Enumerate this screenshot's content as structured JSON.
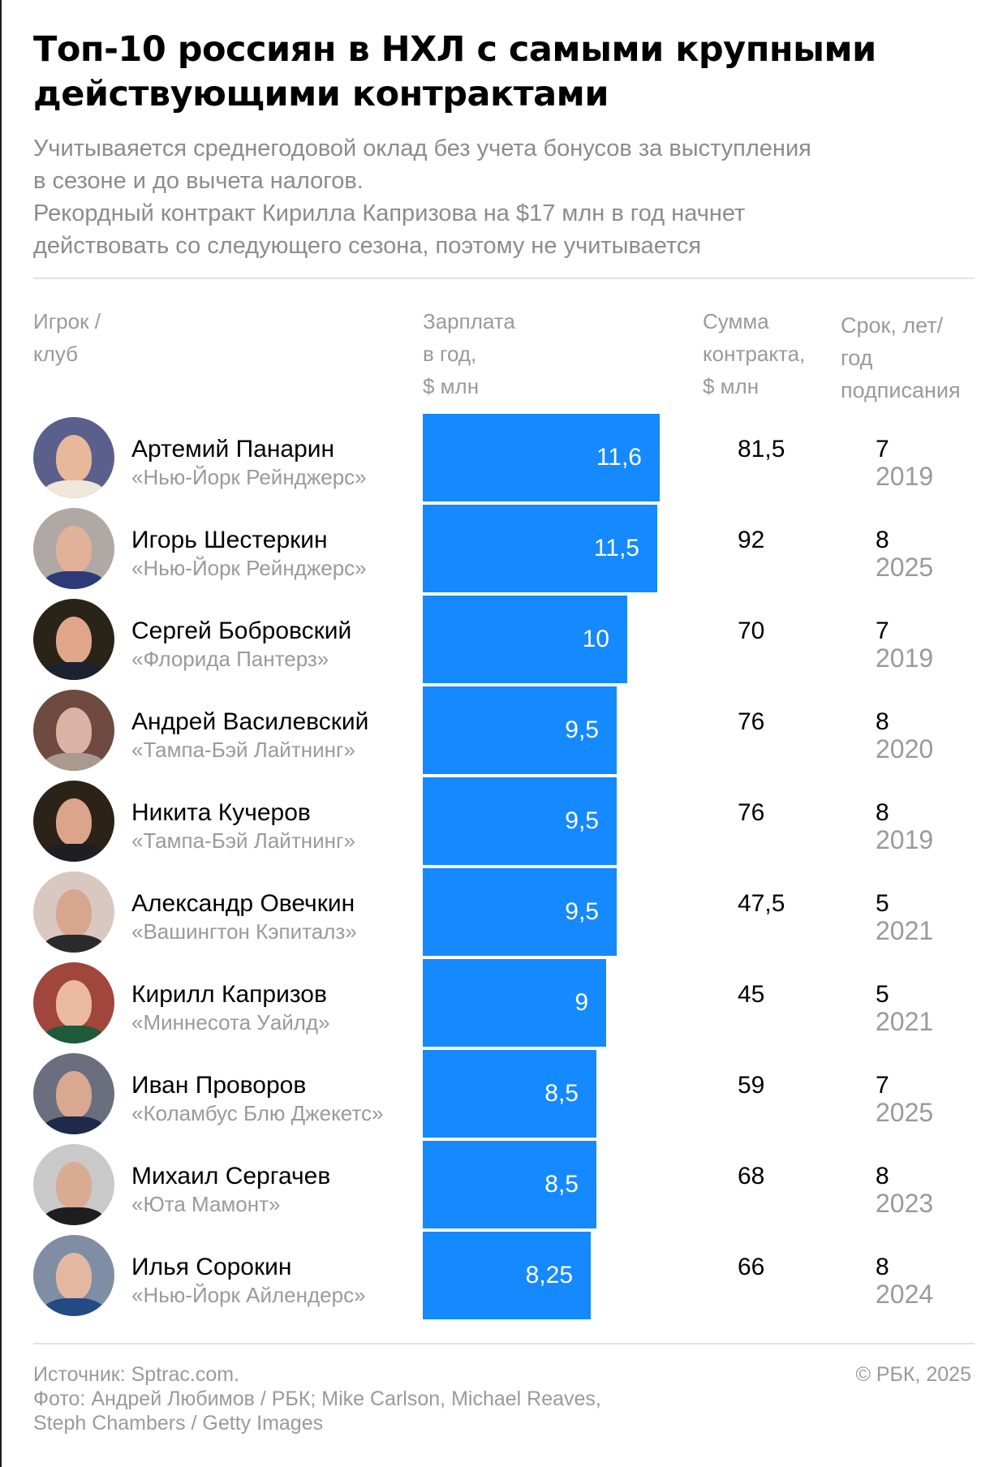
{
  "header": {
    "title_line1": "Топ-10 россиян в НХЛ с самыми крупными",
    "title_line2": "действующими контрактами",
    "subtitle_lines": [
      "Учитываяется среднегодовой оклад без учета бонусов за выступления",
      "в сезоне и до вычета налогов.",
      "Рекордный контракт Кирилла Капризова на $17 млн в год начнет",
      "действовать со следующего сезона, поэтому не учитывается"
    ]
  },
  "columns": {
    "player": [
      "Игрок /",
      "клуб"
    ],
    "salary": [
      "Зарплата",
      "в год,",
      "$ млн"
    ],
    "total": [
      "Сумма",
      "контракта,",
      "$ млн"
    ],
    "term": [
      "Срок, лет/",
      "год",
      "подписания"
    ]
  },
  "colors": {
    "bar": "#1589ff",
    "bar_label": "#ffffff",
    "muted_text": "#9a9a9a",
    "divider": "#e3e3e3"
  },
  "rows": [
    {
      "name": "Артемий Панарин",
      "club": "«Нью-Йорк Рейнджерс»",
      "salary": "11,6",
      "total": "81,5",
      "term": "7",
      "year": "2019",
      "avatar_bg": "#5a5f8c",
      "avatar_face": "#e8b89a",
      "avatar_body": "#f0e6da"
    },
    {
      "name": "Игорь Шестеркин",
      "club": "«Нью-Йорк Рейнджерс»",
      "salary": "11,5",
      "total": "92",
      "term": "8",
      "year": "2025",
      "avatar_bg": "#b0a8a4",
      "avatar_face": "#e2b199",
      "avatar_body": "#2c3a78"
    },
    {
      "name": "Сергей Бобровский",
      "club": "«Флорида Пантерз»",
      "salary": "10",
      "total": "70",
      "term": "7",
      "year": "2019",
      "avatar_bg": "#2a2418",
      "avatar_face": "#e0a68a",
      "avatar_body": "#1d2233"
    },
    {
      "name": "Андрей Василевский",
      "club": "«Тампа-Бэй Лайтнинг»",
      "salary": "9,5",
      "total": "76",
      "term": "8",
      "year": "2020",
      "avatar_bg": "#6e4a40",
      "avatar_face": "#d9b3a3",
      "avatar_body": "#a89a8e"
    },
    {
      "name": "Никита Кучеров",
      "club": "«Тампа-Бэй Лайтнинг»",
      "salary": "9,5",
      "total": "76",
      "term": "8",
      "year": "2019",
      "avatar_bg": "#2b2218",
      "avatar_face": "#dca48a",
      "avatar_body": "#1e1e24"
    },
    {
      "name": "Александр Овечкин",
      "club": "«Вашингтон Кэпиталз»",
      "salary": "9,5",
      "total": "47,5",
      "term": "5",
      "year": "2021",
      "avatar_bg": "#d9c8c2",
      "avatar_face": "#d8a58e",
      "avatar_body": "#2a2a2e"
    },
    {
      "name": "Кирилл Капризов",
      "club": "«Миннесота Уайлд»",
      "salary": "9",
      "total": "45",
      "term": "5",
      "year": "2021",
      "avatar_bg": "#a0463c",
      "avatar_face": "#ecb9a2",
      "avatar_body": "#1f5a3a"
    },
    {
      "name": "Иван Проворов",
      "club": "«Коламбус Блю Джекетс»",
      "salary": "8,5",
      "total": "59",
      "term": "7",
      "year": "2025",
      "avatar_bg": "#6a6e7e",
      "avatar_face": "#d8a890",
      "avatar_body": "#1d2a4a"
    },
    {
      "name": "Михаил Сергачев",
      "club": "«Юта Мамонт»",
      "salary": "8,5",
      "total": "68",
      "term": "8",
      "year": "2023",
      "avatar_bg": "#c9c9c9",
      "avatar_face": "#d8ab92",
      "avatar_body": "#1e1e20"
    },
    {
      "name": "Илья Сорокин",
      "club": "«Нью-Йорк Айлендерс»",
      "salary": "8,25",
      "total": "66",
      "term": "8",
      "year": "2024",
      "avatar_bg": "#7f8ea4",
      "avatar_face": "#e4b8a0",
      "avatar_body": "#234a84"
    }
  ],
  "footer": {
    "source": "Источник: Sptrac.com.",
    "photo_line1": "Фото: Андрей Любимов / РБК; Mike Carlson, Michael Reaves,",
    "photo_line2": "Steph Chambers / Getty Images",
    "copyright": "© РБК, 2025"
  },
  "chart_data": {
    "type": "bar",
    "orientation": "horizontal",
    "title": "Топ-10 россиян в НХЛ с самыми крупными действующими контрактами",
    "subtitle": "Учитываяется среднегодовой оклад без учета бонусов за выступления в сезоне и до вычета налогов. Рекордный контракт Кирилла Капризова на $17 млн в год начнет действовать со следующего сезона, поэтому не учитывается",
    "categories": [
      "Артемий Панарин",
      "Игорь Шестеркин",
      "Сергей Бобровский",
      "Андрей Василевский",
      "Никита Кучеров",
      "Александр Овечкин",
      "Кирилл Капризов",
      "Иван Проворов",
      "Михаил Сергачев",
      "Илья Сорокин"
    ],
    "clubs": [
      "Нью-Йорк Рейнджерс",
      "Нью-Йорк Рейнджерс",
      "Флорида Пантерз",
      "Тампа-Бэй Лайтнинг",
      "Тампа-Бэй Лайтнинг",
      "Вашингтон Кэпиталз",
      "Миннесота Уайлд",
      "Коламбус Блю Джекетс",
      "Юта Мамонт",
      "Нью-Йорк Айлендерс"
    ],
    "series": [
      {
        "name": "Зарплата в год, $ млн",
        "values": [
          11.6,
          11.5,
          10,
          9.5,
          9.5,
          9.5,
          9,
          8.5,
          8.5,
          8.25
        ]
      },
      {
        "name": "Сумма контракта, $ млн",
        "values": [
          81.5,
          92,
          70,
          76,
          76,
          47.5,
          45,
          59,
          68,
          66
        ]
      },
      {
        "name": "Срок, лет",
        "values": [
          7,
          8,
          7,
          8,
          8,
          5,
          5,
          7,
          8,
          8
        ]
      },
      {
        "name": "Год подписания",
        "values": [
          2019,
          2025,
          2019,
          2020,
          2019,
          2021,
          2021,
          2025,
          2023,
          2024
        ]
      }
    ],
    "xlabel": "Зарплата в год, $ млн",
    "ylabel": "Игрок / клуб",
    "grid": false,
    "legend": "none",
    "source": "Sptrac.com"
  }
}
